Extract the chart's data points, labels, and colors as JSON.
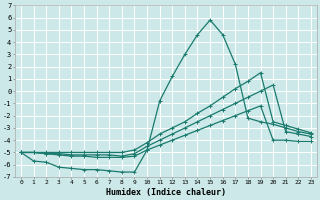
{
  "xlabel": "Humidex (Indice chaleur)",
  "background_color": "#cce8e8",
  "grid_color": "#ffffff",
  "line_color": "#1a7a6e",
  "xlim": [
    -0.5,
    23.5
  ],
  "ylim": [
    -7,
    7
  ],
  "x_ticks": [
    0,
    1,
    2,
    3,
    4,
    5,
    6,
    7,
    8,
    9,
    10,
    11,
    12,
    13,
    14,
    15,
    16,
    17,
    18,
    19,
    20,
    21,
    22,
    23
  ],
  "y_ticks": [
    -7,
    -6,
    -5,
    -4,
    -3,
    -2,
    -1,
    0,
    1,
    2,
    3,
    4,
    5,
    6,
    7
  ],
  "series": [
    {
      "x": [
        0,
        1,
        2,
        3,
        4,
        5,
        6,
        7,
        8,
        9,
        10,
        11,
        12,
        13,
        14,
        15,
        16,
        17,
        18,
        19,
        20,
        21,
        22,
        23
      ],
      "y": [
        -5.0,
        -5.7,
        -5.8,
        -6.2,
        -6.3,
        -6.4,
        -6.4,
        -6.5,
        -6.6,
        -6.6,
        -4.8,
        -0.8,
        1.2,
        3.0,
        4.6,
        5.8,
        4.6,
        2.2,
        -2.2,
        -2.5,
        -2.7,
        -3.0,
        -3.3,
        -3.5
      ]
    },
    {
      "x": [
        0,
        1,
        2,
        3,
        4,
        5,
        6,
        7,
        8,
        9,
        10,
        11,
        12,
        13,
        14,
        15,
        16,
        17,
        18,
        19,
        20,
        21,
        22,
        23
      ],
      "y": [
        -5.0,
        -5.0,
        -5.0,
        -5.0,
        -5.0,
        -5.0,
        -5.0,
        -5.0,
        -5.0,
        -4.8,
        -4.2,
        -3.5,
        -3.0,
        -2.5,
        -1.8,
        -1.2,
        -0.5,
        0.2,
        0.8,
        1.5,
        -2.5,
        -2.8,
        -3.1,
        -3.4
      ]
    },
    {
      "x": [
        0,
        1,
        2,
        3,
        4,
        5,
        6,
        7,
        8,
        9,
        10,
        11,
        12,
        13,
        14,
        15,
        16,
        17,
        18,
        19,
        20,
        21,
        22,
        23
      ],
      "y": [
        -5.0,
        -5.0,
        -5.1,
        -5.1,
        -5.2,
        -5.2,
        -5.2,
        -5.2,
        -5.3,
        -5.1,
        -4.5,
        -4.0,
        -3.5,
        -3.0,
        -2.5,
        -2.0,
        -1.5,
        -1.0,
        -0.5,
        0.0,
        0.5,
        -3.3,
        -3.5,
        -3.7
      ]
    },
    {
      "x": [
        0,
        1,
        2,
        3,
        4,
        5,
        6,
        7,
        8,
        9,
        10,
        11,
        12,
        13,
        14,
        15,
        16,
        17,
        18,
        19,
        20,
        21,
        22,
        23
      ],
      "y": [
        -5.0,
        -5.0,
        -5.1,
        -5.2,
        -5.3,
        -5.3,
        -5.4,
        -5.4,
        -5.4,
        -5.3,
        -4.8,
        -4.4,
        -4.0,
        -3.6,
        -3.2,
        -2.8,
        -2.4,
        -2.0,
        -1.6,
        -1.2,
        -4.0,
        -4.0,
        -4.1,
        -4.1
      ]
    }
  ]
}
